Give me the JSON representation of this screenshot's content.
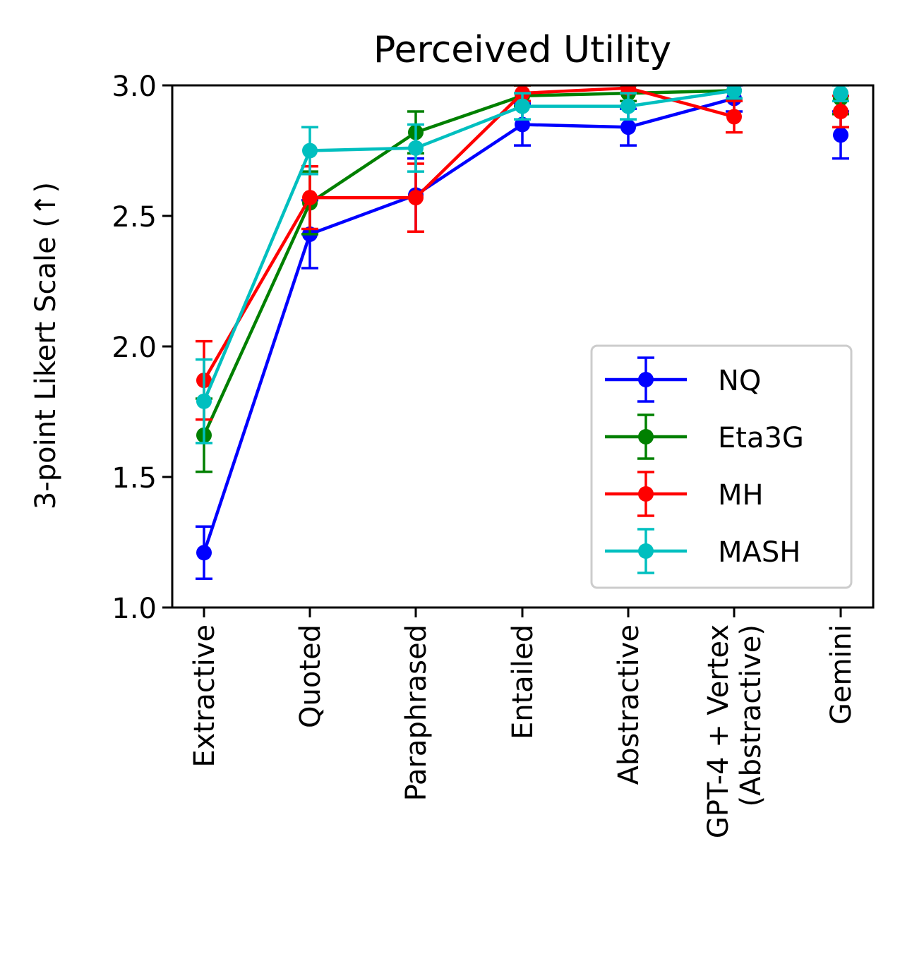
{
  "chart_data": {
    "type": "line",
    "title": "Perceived Utility",
    "xlabel": "",
    "ylabel": "3-point Likert Scale (↑)",
    "categories": [
      "Extractive",
      "Quoted",
      "Paraphrased",
      "Entailed",
      "Abstractive",
      "GPT-4 + Vertex\n(Abstractive)",
      "Gemini"
    ],
    "ylim": [
      1.0,
      3.0
    ],
    "yticks": [
      "1.0",
      "1.5",
      "2.0",
      "2.5",
      "3.0"
    ],
    "grid": false,
    "legend_position": "lower-right",
    "error_bars": true,
    "series": [
      {
        "name": "NQ",
        "color": "#0000ff",
        "values": [
          1.21,
          2.43,
          2.58,
          2.85,
          2.84,
          2.95,
          2.81
        ],
        "errors": [
          0.1,
          0.13,
          0.14,
          0.08,
          0.07,
          0.05,
          0.09
        ],
        "connected": [
          true,
          true,
          true,
          true,
          true,
          true,
          false
        ]
      },
      {
        "name": "Eta3G",
        "color": "#008000",
        "values": [
          1.66,
          2.55,
          2.82,
          2.96,
          2.97,
          2.98,
          2.95
        ],
        "errors": [
          0.14,
          0.12,
          0.08,
          0.04,
          0.03,
          0.03,
          0.06
        ],
        "connected": [
          true,
          true,
          true,
          true,
          true,
          true,
          false
        ]
      },
      {
        "name": "MH",
        "color": "#ff0000",
        "values": [
          1.87,
          2.57,
          2.57,
          2.97,
          2.99,
          2.88,
          2.9
        ],
        "errors": [
          0.15,
          0.12,
          0.13,
          0.03,
          0.02,
          0.06,
          0.06
        ],
        "connected": [
          true,
          true,
          true,
          true,
          true,
          true,
          false
        ]
      },
      {
        "name": "MASH",
        "color": "#00bfbf",
        "values": [
          1.79,
          2.75,
          2.76,
          2.92,
          2.92,
          2.98,
          2.97
        ],
        "errors": [
          0.16,
          0.09,
          0.09,
          0.05,
          0.05,
          0.03,
          0.03
        ],
        "connected": [
          true,
          true,
          true,
          true,
          true,
          true,
          false
        ]
      }
    ]
  }
}
